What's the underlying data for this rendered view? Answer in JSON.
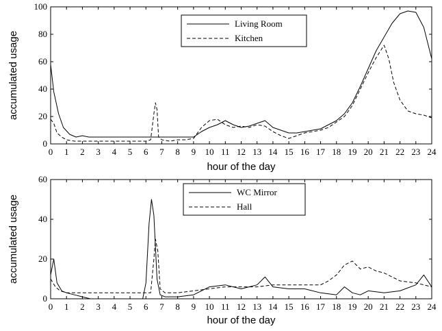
{
  "chart_data": [
    {
      "type": "line",
      "xlabel": "hour of the day",
      "ylabel": "accumulated usage",
      "xlim": [
        0,
        24
      ],
      "ylim": [
        0,
        100
      ],
      "xticks": [
        0,
        1,
        2,
        3,
        4,
        5,
        6,
        7,
        8,
        9,
        10,
        11,
        12,
        13,
        14,
        15,
        16,
        17,
        18,
        19,
        20,
        21,
        22,
        23,
        24
      ],
      "yticks": [
        0,
        20,
        40,
        60,
        80,
        100
      ],
      "legend": "top-center",
      "series": [
        {
          "name": "Living Room",
          "style": "solid",
          "x": [
            0,
            0.2,
            0.5,
            0.8,
            1.2,
            1.6,
            2.0,
            2.4,
            3,
            4,
            5,
            6,
            7,
            8,
            9,
            9.5,
            10,
            10.5,
            11,
            11.5,
            12,
            12.5,
            13,
            13.5,
            14,
            14.5,
            15,
            15.5,
            16,
            16.5,
            17,
            17.5,
            18,
            18.5,
            19,
            19.5,
            20,
            20.5,
            21,
            21.5,
            22,
            22.5,
            23,
            23.5,
            24
          ],
          "y": [
            58,
            38,
            22,
            12,
            7,
            5,
            6,
            5,
            5,
            5,
            5,
            5,
            5,
            5,
            5,
            9,
            12,
            14,
            17,
            14,
            12,
            13,
            15,
            17,
            12,
            10,
            8,
            8,
            9,
            10,
            11,
            14,
            17,
            22,
            30,
            42,
            55,
            68,
            78,
            88,
            95,
            97,
            96,
            85,
            62
          ]
        },
        {
          "name": "Kitchen",
          "style": "dashed",
          "x": [
            0,
            0.2,
            0.4,
            0.7,
            1.0,
            1.5,
            2.0,
            3,
            4,
            5,
            6.0,
            6.3,
            6.5,
            6.6,
            6.7,
            6.8,
            7.0,
            7.5,
            8,
            8.5,
            9,
            9.5,
            10,
            10.5,
            11,
            11.5,
            12,
            12.5,
            13,
            13.5,
            14,
            14.5,
            15,
            15.5,
            16,
            16.5,
            17,
            17.5,
            18,
            18.5,
            19,
            19.5,
            20,
            20.5,
            21,
            21.3,
            21.6,
            22,
            22.5,
            23,
            23.5,
            24
          ],
          "y": [
            18,
            15,
            8,
            5,
            3,
            2,
            2,
            2,
            2,
            2,
            2,
            3,
            22,
            30,
            25,
            5,
            3,
            2,
            3,
            3,
            4,
            12,
            17,
            18,
            14,
            12,
            13,
            12,
            14,
            13,
            9,
            6,
            4,
            6,
            8,
            9,
            10,
            12,
            16,
            20,
            28,
            40,
            52,
            63,
            72,
            62,
            45,
            32,
            24,
            22,
            21,
            19
          ]
        }
      ]
    },
    {
      "type": "line",
      "xlabel": "hour of the day",
      "ylabel": "accumulated usage",
      "xlim": [
        0,
        24
      ],
      "ylim": [
        0,
        60
      ],
      "xticks": [
        0,
        1,
        2,
        3,
        4,
        5,
        6,
        7,
        8,
        9,
        10,
        11,
        12,
        13,
        14,
        15,
        16,
        17,
        18,
        19,
        20,
        21,
        22,
        23,
        24
      ],
      "yticks": [
        0,
        20,
        40,
        60
      ],
      "legend": "top-center",
      "series": [
        {
          "name": "WC Mirror",
          "style": "solid",
          "x": [
            0,
            0.2,
            0.4,
            0.7,
            1.0,
            1.5,
            2.0,
            2.5,
            3,
            4,
            5,
            5.8,
            6.0,
            6.2,
            6.35,
            6.5,
            6.7,
            6.9,
            7.2,
            8,
            9,
            10,
            11,
            12,
            13,
            13.5,
            14,
            15,
            16,
            17,
            18,
            18.5,
            19,
            19.5,
            20,
            21,
            22,
            23,
            23.5,
            24
          ],
          "y": [
            12,
            20,
            8,
            4,
            3,
            2,
            1,
            0,
            0,
            0,
            0,
            0,
            8,
            38,
            50,
            42,
            10,
            2,
            1,
            1,
            2,
            6,
            7,
            5,
            7,
            11,
            6,
            5,
            5,
            3,
            2,
            6,
            3,
            2,
            4,
            3,
            4,
            7,
            12,
            6
          ]
        },
        {
          "name": "Hall",
          "style": "dashed",
          "x": [
            0,
            0.3,
            0.6,
            1,
            2,
            3,
            4,
            5,
            6.0,
            6.3,
            6.5,
            6.6,
            6.75,
            6.9,
            7.2,
            8,
            9,
            10,
            11,
            12,
            13,
            14,
            15,
            16,
            17,
            17.5,
            18,
            18.5,
            19,
            19.5,
            20,
            20.5,
            21,
            22,
            23,
            24
          ],
          "y": [
            10,
            6,
            4,
            3,
            3,
            3,
            3,
            3,
            3,
            3,
            20,
            30,
            24,
            5,
            3,
            3,
            4,
            5,
            6,
            6,
            6,
            7,
            7,
            7,
            7,
            9,
            12,
            17,
            19,
            15,
            16,
            14,
            13,
            9,
            8,
            6
          ]
        }
      ]
    }
  ]
}
